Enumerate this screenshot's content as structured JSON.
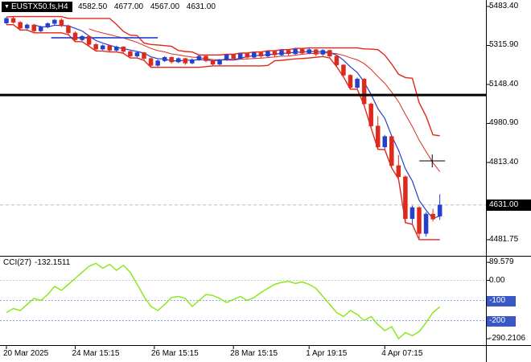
{
  "header": {
    "symbol_label": "EUSTX50.fs,H4",
    "ohlc_display": "4582.50 4677.00 4567.00 4631.00"
  },
  "price_axis": {
    "ticks": [
      {
        "text": "5483.40",
        "value": 5483.4
      },
      {
        "text": "5315.90",
        "value": 5315.9
      },
      {
        "text": "5148.40",
        "value": 5148.4
      },
      {
        "text": "4980.90",
        "value": 4980.9
      },
      {
        "text": "4813.40",
        "value": 4813.4
      },
      {
        "text": "4481.75",
        "value": 4481.75
      }
    ],
    "current": {
      "text": "4631.00",
      "value": 4631.0
    }
  },
  "cci_panel": {
    "title": "CCI(27)",
    "value": "-132.1511",
    "ticks": [
      {
        "text": "89.579",
        "value": 89.579,
        "highlight": false
      },
      {
        "text": "0.00",
        "value": 0,
        "highlight": false
      },
      {
        "text": "-100",
        "value": -100,
        "highlight": true
      },
      {
        "text": "-200",
        "value": -200,
        "highlight": true
      },
      {
        "text": "-290.2106",
        "value": -290.2106,
        "highlight": false
      }
    ]
  },
  "time_axis": {
    "ticks": [
      {
        "text": "20 Mar 2025",
        "index": 0
      },
      {
        "text": "24 Mar 15:15",
        "index": 10
      },
      {
        "text": "26 Mar 15:15",
        "index": 21.5
      },
      {
        "text": "28 Mar 15:15",
        "index": 33
      },
      {
        "text": "1 Apr 19:15",
        "index": 44
      },
      {
        "text": "4 Apr 07:15",
        "index": 55
      }
    ]
  },
  "chart_data": {
    "type": "candlestick",
    "symbol": "EUSTX50.fs",
    "timeframe": "H4",
    "title": "EUSTX50.fs,H4 4582.50 4677.00 4567.00 4631.00",
    "current_candle": {
      "open": 4582.5,
      "high": 4677.0,
      "low": 4567.0,
      "close": 4631.0
    },
    "price_ylim": [
      4416,
      5511
    ],
    "cci_ylim": [
      -318,
      114
    ],
    "candles": [
      [
        5412,
        5438,
        5405,
        5432
      ],
      [
        5432,
        5440,
        5410,
        5415
      ],
      [
        5415,
        5420,
        5382,
        5390
      ],
      [
        5390,
        5410,
        5385,
        5404
      ],
      [
        5404,
        5408,
        5370,
        5378
      ],
      [
        5378,
        5400,
        5372,
        5395
      ],
      [
        5395,
        5415,
        5390,
        5410
      ],
      [
        5410,
        5430,
        5402,
        5425
      ],
      [
        5425,
        5432,
        5395,
        5400
      ],
      [
        5400,
        5406,
        5362,
        5370
      ],
      [
        5370,
        5376,
        5332,
        5340
      ],
      [
        5340,
        5360,
        5335,
        5355
      ],
      [
        5355,
        5358,
        5312,
        5320
      ],
      [
        5320,
        5326,
        5292,
        5300
      ],
      [
        5300,
        5320,
        5295,
        5315
      ],
      [
        5315,
        5318,
        5288,
        5295
      ],
      [
        5295,
        5315,
        5290,
        5310
      ],
      [
        5310,
        5312,
        5282,
        5290
      ],
      [
        5290,
        5294,
        5262,
        5270
      ],
      [
        5270,
        5290,
        5265,
        5285
      ],
      [
        5285,
        5288,
        5252,
        5260
      ],
      [
        5260,
        5264,
        5222,
        5230
      ],
      [
        5230,
        5255,
        5225,
        5250
      ],
      [
        5250,
        5270,
        5245,
        5265
      ],
      [
        5265,
        5268,
        5238,
        5245
      ],
      [
        5245,
        5265,
        5240,
        5260
      ],
      [
        5260,
        5262,
        5232,
        5240
      ],
      [
        5240,
        5260,
        5235,
        5255
      ],
      [
        5255,
        5275,
        5250,
        5270
      ],
      [
        5270,
        5272,
        5244,
        5250
      ],
      [
        5250,
        5254,
        5228,
        5235
      ],
      [
        5235,
        5258,
        5230,
        5255
      ],
      [
        5255,
        5278,
        5250,
        5275
      ],
      [
        5275,
        5278,
        5252,
        5260
      ],
      [
        5260,
        5283,
        5255,
        5280
      ],
      [
        5280,
        5282,
        5258,
        5265
      ],
      [
        5265,
        5288,
        5260,
        5285
      ],
      [
        5285,
        5288,
        5262,
        5270
      ],
      [
        5270,
        5293,
        5265,
        5290
      ],
      [
        5290,
        5292,
        5268,
        5275
      ],
      [
        5275,
        5298,
        5270,
        5295
      ],
      [
        5295,
        5297,
        5272,
        5280
      ],
      [
        5280,
        5303,
        5275,
        5300
      ],
      [
        5300,
        5302,
        5276,
        5283
      ],
      [
        5283,
        5305,
        5278,
        5298
      ],
      [
        5298,
        5301,
        5270,
        5278
      ],
      [
        5278,
        5300,
        5272,
        5295
      ],
      [
        5295,
        5298,
        5262,
        5270
      ],
      [
        5270,
        5274,
        5225,
        5232
      ],
      [
        5232,
        5236,
        5180,
        5188
      ],
      [
        5188,
        5192,
        5128,
        5135
      ],
      [
        5135,
        5178,
        5130,
        5172
      ],
      [
        5172,
        5175,
        5058,
        5065
      ],
      [
        5065,
        5070,
        4962,
        4970
      ],
      [
        4970,
        5012,
        4870,
        4880
      ],
      [
        4880,
        4932,
        4868,
        4925
      ],
      [
        4925,
        4928,
        4790,
        4800
      ],
      [
        4800,
        4845,
        4742,
        4752
      ],
      [
        4752,
        4758,
        4555,
        4572
      ],
      [
        4572,
        4628,
        4548,
        4620
      ],
      [
        4620,
        4625,
        4482,
        4508
      ],
      [
        4508,
        4600,
        4495,
        4592
      ],
      [
        4592,
        4615,
        4560,
        4570
      ],
      [
        4582.5,
        4677,
        4567,
        4631
      ]
    ],
    "cci_values": [
      -160,
      -140,
      -150,
      -120,
      -90,
      -100,
      -70,
      -30,
      -50,
      -20,
      10,
      40,
      70,
      85,
      60,
      80,
      50,
      75,
      40,
      -20,
      -80,
      -130,
      -150,
      -120,
      -85,
      -80,
      -90,
      -130,
      -100,
      -70,
      -75,
      -90,
      -110,
      -95,
      -80,
      -100,
      -85,
      -60,
      -40,
      -20,
      -10,
      -5,
      -15,
      -8,
      -20,
      -40,
      -80,
      -120,
      -160,
      -180,
      -150,
      -170,
      -200,
      -180,
      -220,
      -250,
      -230,
      -290,
      -260,
      -275,
      -255,
      -210,
      -160,
      -132.1511
    ],
    "overlays": {
      "hline_price": 5103,
      "segment": {
        "price": 5349,
        "from_index": 6.5,
        "to_index": 22
      },
      "crosshair": {
        "price": 4820,
        "index": 61.9
      },
      "current_price_line": 4631
    }
  },
  "colors": {
    "up": "#2440CC",
    "down": "#DD2A1E",
    "channel": "#E3261A",
    "ma_fast": "#2440CC",
    "ma_slow": "#DD2A1E",
    "cci_line": "#8DE71C",
    "level_box": "#3A57C8",
    "current_box_bg": "#000000",
    "text": "#000000",
    "background": "#FFFFFF"
  }
}
